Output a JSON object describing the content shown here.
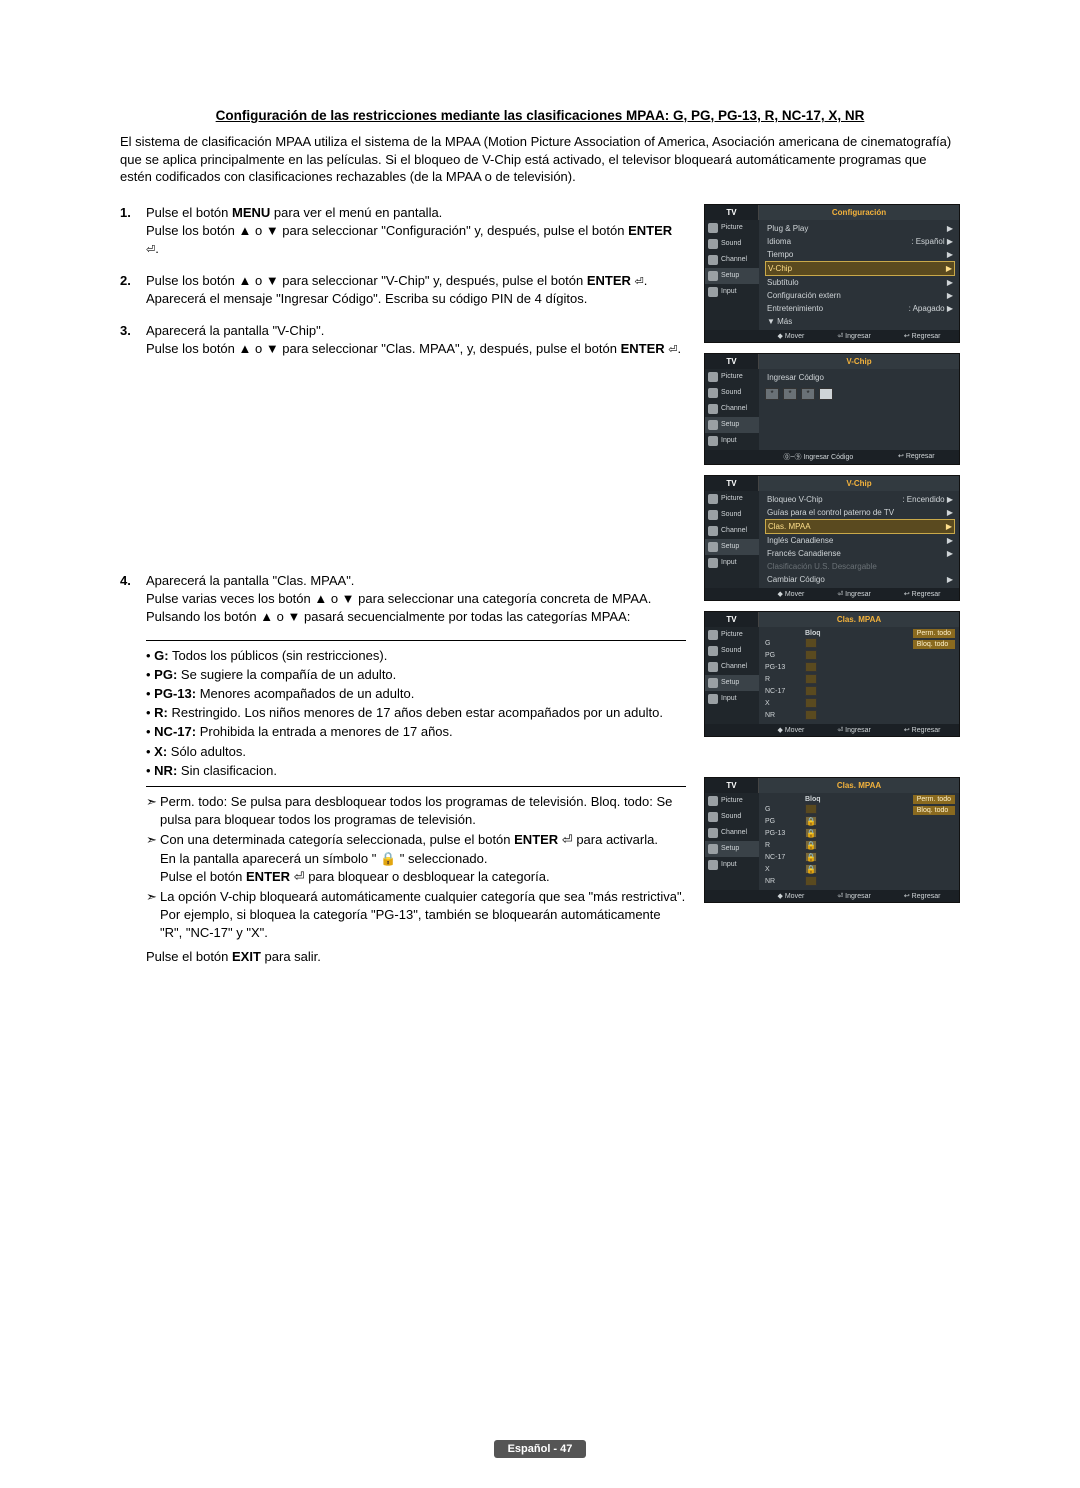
{
  "title": "Configuración de las restricciones mediante las clasificaciones MPAA: G, PG, PG-13, R, NC-17, X, NR",
  "intro": "El sistema de clasificación MPAA utiliza el sistema de la MPAA (Motion Picture Association of America, Asociación americana de cinematografía) que se aplica principalmente en las películas. Si el bloqueo de V-Chip está activado, el televisor bloqueará automáticamente programas que estén codificados con clasificaciones rechazables (de la MPAA o de televisión).",
  "steps": {
    "s1": {
      "num": "1.",
      "html": "Pulse el botón <b>MENU</b> para ver el menú en pantalla.<br>Pulse los botón ▲ o ▼ para seleccionar \"Configuración\" y, después, pulse el botón <b>ENTER</b> <span class='enter-sym'>⏎</span>."
    },
    "s2": {
      "num": "2.",
      "html": "Pulse los botón ▲ o ▼ para seleccionar \"V-Chip\" y, después, pulse el botón <b>ENTER</b> <span class='enter-sym'>⏎</span>.<br>Aparecerá el mensaje \"Ingresar Código\". Escriba su código PIN de 4 dígitos."
    },
    "s3": {
      "num": "3.",
      "html": "Aparecerá la pantalla \"V-Chip\".<br>Pulse los botón ▲ o ▼ para seleccionar \"Clas. MPAA\", y, después, pulse el botón <b>ENTER</b> <span class='enter-sym'>⏎</span>."
    },
    "s4": {
      "num": "4.",
      "html": "Aparecerá la pantalla \"Clas. MPAA\".<br>Pulse varias veces los botón ▲ o ▼ para seleccionar una categoría concreta de MPAA. Pulsando los botón ▲ o ▼ pasará secuencialmente por todas las categorías MPAA:"
    }
  },
  "bullets": [
    {
      "b": "G:",
      "t": " Todos los públicos (sin restricciones)."
    },
    {
      "b": "PG:",
      "t": " Se sugiere la compañía de un adulto."
    },
    {
      "b": "PG-13:",
      "t": " Menores acompañados de un adulto."
    },
    {
      "b": "R:",
      "t": " Restringido. Los niños menores de 17 años deben estar acompañados por un adulto."
    },
    {
      "b": "NC-17:",
      "t": " Prohibida la entrada a menores de 17 años."
    },
    {
      "b": "X:",
      "t": " Sólo adultos."
    },
    {
      "b": "NR:",
      "t": " Sin clasificacion."
    }
  ],
  "notes": [
    "Perm. todo: Se pulsa para desbloquear todos los programas de televisión. Bloq. todo: Se pulsa para bloquear todos los programas de televisión.",
    "Con una determinada categoría seleccionada, pulse el botón ENTER ⏎ para activarla.\nEn la pantalla aparecerá un símbolo \" 🔒 \" seleccionado.\nPulse el botón ENTER ⏎ para bloquear o desbloquear la categoría.",
    "La opción V-chip bloqueará automáticamente cualquier categoría que sea \"más restrictiva\".\nPor ejemplo, si bloquea la categoría \"PG-13\", también se bloquearán automáticamente \"R\", \"NC-17\" y \"X\"."
  ],
  "exit": "Pulse el botón EXIT para salir.",
  "footer": "Español - 47",
  "osd": {
    "side": [
      "Picture",
      "Sound",
      "Channel",
      "Setup",
      "Input"
    ],
    "foot": {
      "mover": "Mover",
      "ingresar": "Ingresar",
      "regresar": "Regresar",
      "ingresarCodigo": "Ingresar Código"
    },
    "m1": {
      "title": "Configuración",
      "rows": [
        {
          "l": "Plug & Play",
          "r": "",
          "arr": "▶"
        },
        {
          "l": "Idioma",
          "r": ": Español",
          "arr": "▶"
        },
        {
          "l": "Tiempo",
          "r": "",
          "arr": "▶"
        },
        {
          "l": "V-Chip",
          "r": "",
          "arr": "▶",
          "hl": true
        },
        {
          "l": "Subtítulo",
          "r": "",
          "arr": "▶"
        },
        {
          "l": "Configuración extern",
          "r": "",
          "arr": "▶"
        },
        {
          "l": "Entretenimiento",
          "r": ": Apagado",
          "arr": "▶"
        },
        {
          "l": "▼ Más",
          "r": "",
          "arr": ""
        }
      ]
    },
    "m2": {
      "title": "V-Chip",
      "codeLabel": "Ingresar Código"
    },
    "m3": {
      "title": "V-Chip",
      "rows": [
        {
          "l": "Bloqueo V-Chip",
          "r": ": Encendido",
          "arr": "▶"
        },
        {
          "l": "Guías para el control paterno de TV",
          "r": "",
          "arr": "▶"
        },
        {
          "l": "Clas. MPAA",
          "r": "",
          "arr": "▶",
          "hl": true
        },
        {
          "l": "Inglés Canadiense",
          "r": "",
          "arr": "▶"
        },
        {
          "l": "Francés Canadiense",
          "r": "",
          "arr": "▶"
        },
        {
          "l": "Clasificación U.S. Descargable",
          "r": "",
          "arr": "",
          "dim": true
        },
        {
          "l": "Cambiar Código",
          "r": "",
          "arr": "▶"
        }
      ]
    },
    "m4": {
      "title": "Clas. MPAA",
      "bloq": "Bloq",
      "ratings": [
        "G",
        "PG",
        "PG-13",
        "R",
        "NC-17",
        "X",
        "NR"
      ],
      "locks": [
        false,
        false,
        false,
        false,
        false,
        false,
        false
      ],
      "perm": "Perm. todo",
      "bloqTodo": "Bloq. todo"
    },
    "m5": {
      "title": "Clas. MPAA",
      "bloq": "Bloq",
      "ratings": [
        "G",
        "PG",
        "PG-13",
        "R",
        "NC-17",
        "X",
        "NR"
      ],
      "locks": [
        false,
        true,
        true,
        true,
        true,
        true,
        false
      ],
      "perm": "Perm. todo",
      "bloqTodo": "Bloq. todo"
    }
  }
}
